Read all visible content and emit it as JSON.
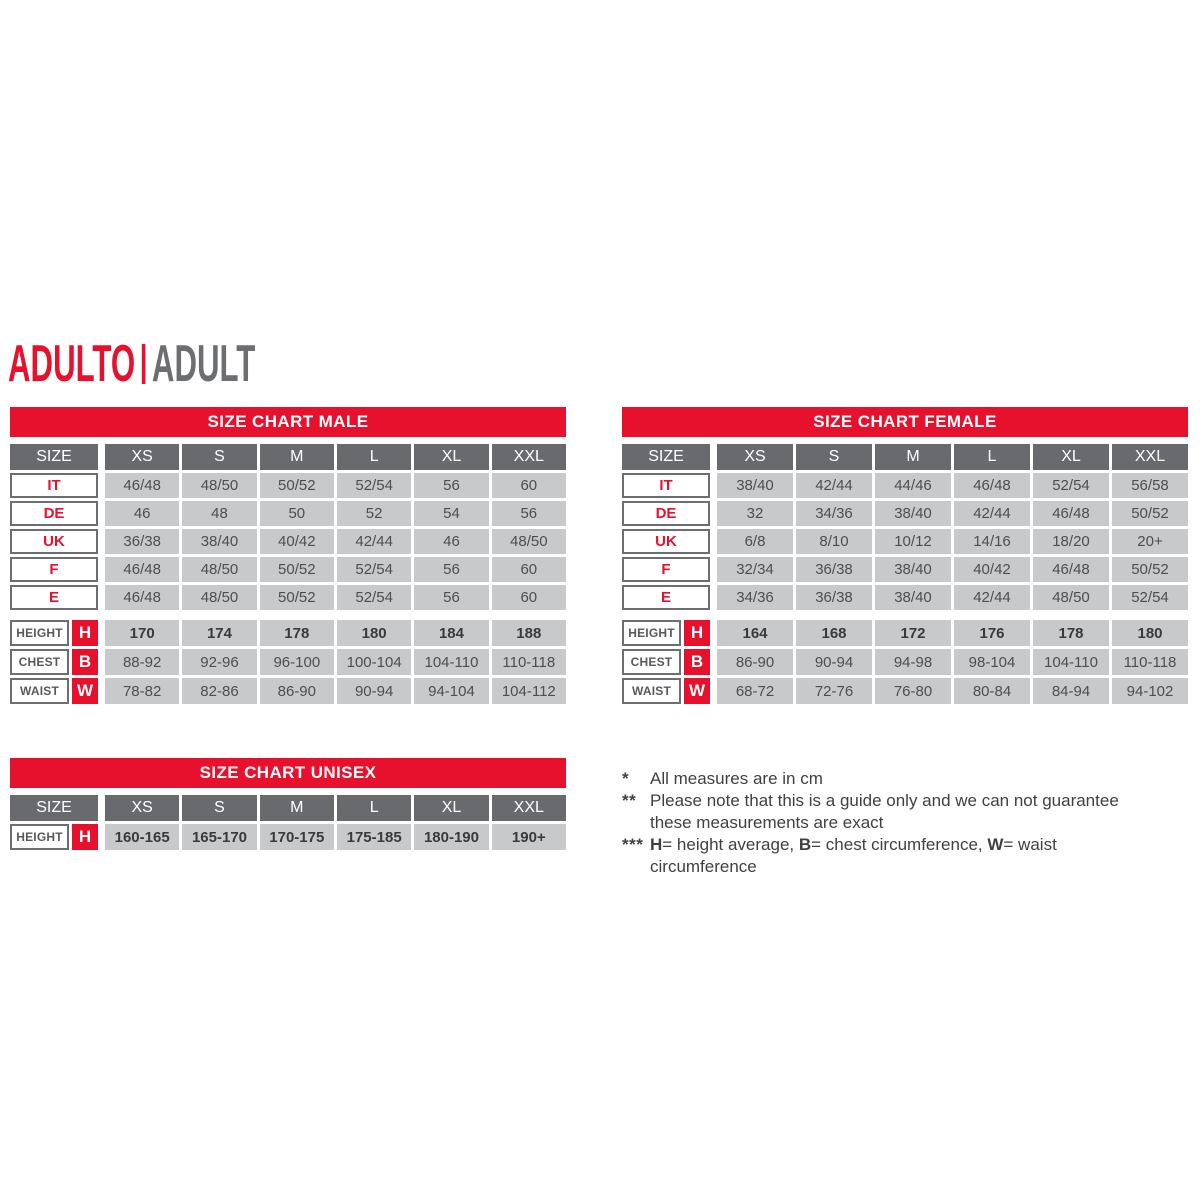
{
  "title": {
    "primary": "ADULTO",
    "secondary": "ADULT"
  },
  "colors": {
    "red": "#E8112D",
    "header_gray": "#696A6E",
    "cell_gray": "#C8C9CB",
    "value_text": "#4D4E50",
    "label_border": "#6D6E71",
    "title_secondary_gray": "#6D6E71"
  },
  "tables": [
    {
      "id": "male",
      "title": "SIZE CHART MALE",
      "corner_label": "SIZE",
      "columns": [
        "XS",
        "S",
        "M",
        "L",
        "XL",
        "XXL"
      ],
      "region_rows": [
        {
          "label": "IT",
          "values": [
            "46/48",
            "48/50",
            "50/52",
            "52/54",
            "56",
            "60"
          ]
        },
        {
          "label": "DE",
          "values": [
            "46",
            "48",
            "50",
            "52",
            "54",
            "56"
          ]
        },
        {
          "label": "UK",
          "values": [
            "36/38",
            "38/40",
            "40/42",
            "42/44",
            "46",
            "48/50"
          ]
        },
        {
          "label": "F",
          "values": [
            "46/48",
            "48/50",
            "50/52",
            "52/54",
            "56",
            "60"
          ]
        },
        {
          "label": "E",
          "values": [
            "46/48",
            "48/50",
            "50/52",
            "52/54",
            "56",
            "60"
          ]
        }
      ],
      "measure_rows": [
        {
          "label": "HEIGHT",
          "letter": "H",
          "emphasis": true,
          "values": [
            "170",
            "174",
            "178",
            "180",
            "184",
            "188"
          ]
        },
        {
          "label": "CHEST",
          "letter": "B",
          "emphasis": false,
          "values": [
            "88-92",
            "92-96",
            "96-100",
            "100-104",
            "104-110",
            "110-118"
          ]
        },
        {
          "label": "WAIST",
          "letter": "W",
          "emphasis": false,
          "values": [
            "78-82",
            "82-86",
            "86-90",
            "90-94",
            "94-104",
            "104-112"
          ]
        }
      ]
    },
    {
      "id": "female",
      "title": "SIZE CHART FEMALE",
      "corner_label": "SIZE",
      "columns": [
        "XS",
        "S",
        "M",
        "L",
        "XL",
        "XXL"
      ],
      "region_rows": [
        {
          "label": "IT",
          "values": [
            "38/40",
            "42/44",
            "44/46",
            "46/48",
            "52/54",
            "56/58"
          ]
        },
        {
          "label": "DE",
          "values": [
            "32",
            "34/36",
            "38/40",
            "42/44",
            "46/48",
            "50/52"
          ]
        },
        {
          "label": "UK",
          "values": [
            "6/8",
            "8/10",
            "10/12",
            "14/16",
            "18/20",
            "20+"
          ]
        },
        {
          "label": "F",
          "values": [
            "32/34",
            "36/38",
            "38/40",
            "40/42",
            "46/48",
            "50/52"
          ]
        },
        {
          "label": "E",
          "values": [
            "34/36",
            "36/38",
            "38/40",
            "42/44",
            "48/50",
            "52/54"
          ]
        }
      ],
      "measure_rows": [
        {
          "label": "HEIGHT",
          "letter": "H",
          "emphasis": true,
          "values": [
            "164",
            "168",
            "172",
            "176",
            "178",
            "180"
          ]
        },
        {
          "label": "CHEST",
          "letter": "B",
          "emphasis": false,
          "values": [
            "86-90",
            "90-94",
            "94-98",
            "98-104",
            "104-110",
            "110-118"
          ]
        },
        {
          "label": "WAIST",
          "letter": "W",
          "emphasis": false,
          "values": [
            "68-72",
            "72-76",
            "76-80",
            "80-84",
            "84-94",
            "94-102"
          ]
        }
      ]
    },
    {
      "id": "unisex",
      "title": "SIZE CHART UNISEX",
      "corner_label": "SIZE",
      "columns": [
        "XS",
        "S",
        "M",
        "L",
        "XL",
        "XXL"
      ],
      "region_rows": [],
      "measure_rows": [
        {
          "label": "HEIGHT",
          "letter": "H",
          "emphasis": true,
          "values": [
            "160-165",
            "165-170",
            "170-175",
            "175-185",
            "180-190",
            "190+"
          ]
        }
      ]
    }
  ],
  "footnotes": [
    {
      "marker": "*",
      "segments": [
        {
          "text": "All measures are in cm",
          "bold": false
        }
      ]
    },
    {
      "marker": "**",
      "segments": [
        {
          "text": "Please note that this is a guide only and we can not guarantee these measurements are exact",
          "bold": false
        }
      ]
    },
    {
      "marker": "***",
      "segments": [
        {
          "text": "H",
          "bold": true
        },
        {
          "text": "= height average, ",
          "bold": false
        },
        {
          "text": "B",
          "bold": true
        },
        {
          "text": "= chest circumference, ",
          "bold": false
        },
        {
          "text": "W",
          "bold": true
        },
        {
          "text": "= waist circumference",
          "bold": false
        }
      ]
    }
  ]
}
